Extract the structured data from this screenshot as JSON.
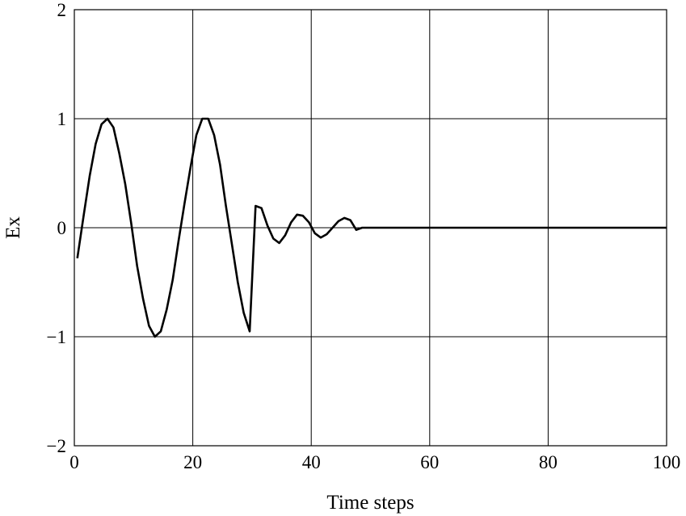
{
  "chart_data": {
    "type": "line",
    "xlabel": "Time steps",
    "ylabel": "Ex",
    "xlim": [
      0,
      100
    ],
    "ylim": [
      -2,
      2
    ],
    "xticks": [
      0,
      20,
      40,
      60,
      80,
      100
    ],
    "yticks": [
      2,
      1,
      0,
      -1,
      -2
    ],
    "xtick_labels": [
      "0",
      "20",
      "40",
      "60",
      "80",
      "100"
    ],
    "ytick_labels": [
      "2",
      "1",
      "0",
      "−1",
      "−2"
    ],
    "grid": true,
    "line_color": "#000000",
    "series": [
      {
        "x": [
          0.5,
          1.6,
          2.6,
          3.6,
          4.6,
          5.6,
          6.6,
          7.6,
          8.6,
          9.6,
          10.6,
          11.6,
          12.6,
          13.6,
          14.6,
          15.6,
          16.6,
          17.6,
          18.6,
          19.6,
          20.6,
          21.6,
          22.6,
          23.6,
          24.6,
          25.6,
          26.6,
          27.6,
          28.6,
          29.6,
          30.6,
          31.6,
          32.6,
          33.6,
          34.6,
          35.6,
          36.6,
          37.6,
          38.6,
          39.6,
          40.6,
          41.6,
          42.6,
          43.6,
          44.6,
          45.6,
          46.6,
          47.6,
          48.6,
          100
        ],
        "y": [
          -0.28,
          0.12,
          0.48,
          0.77,
          0.95,
          1.0,
          0.92,
          0.68,
          0.4,
          0.04,
          -0.35,
          -0.65,
          -0.9,
          -1.0,
          -0.95,
          -0.75,
          -0.48,
          -0.12,
          0.22,
          0.55,
          0.85,
          1.0,
          1.0,
          0.85,
          0.58,
          0.2,
          -0.15,
          -0.5,
          -0.78,
          -0.95,
          0.2,
          0.18,
          0.02,
          -0.1,
          -0.14,
          -0.07,
          0.05,
          0.12,
          0.11,
          0.05,
          -0.05,
          -0.09,
          -0.06,
          0.0,
          0.06,
          0.09,
          0.07,
          -0.02,
          0.0,
          0.0
        ]
      }
    ]
  }
}
